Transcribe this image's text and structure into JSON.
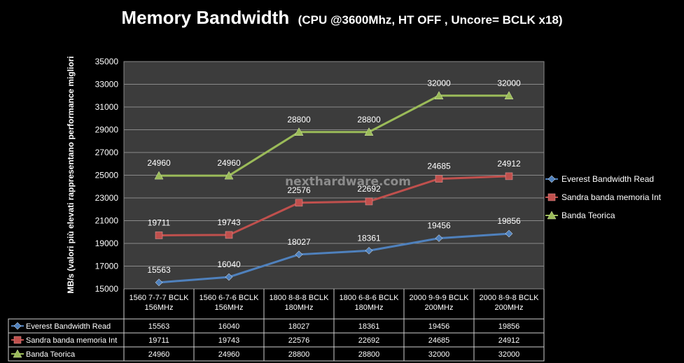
{
  "chart_data": {
    "type": "line",
    "title": "Memory Bandwidth",
    "subtitle": "(CPU @3600Mhz, HT OFF , Uncore= BCLK x18)",
    "ylabel": "MB/s (valori più elevati rappresentano performance migliori",
    "watermark": "nexthardware.com",
    "ylim": [
      15000,
      35000
    ],
    "yticks": [
      15000,
      17000,
      19000,
      21000,
      23000,
      25000,
      27000,
      29000,
      31000,
      33000,
      35000
    ],
    "categories": [
      [
        "1560 7-7-7 BCLK",
        "156MHz"
      ],
      [
        "1560 6-7-6 BCLK",
        "156MHz"
      ],
      [
        "1800 8-8-8 BCLK",
        "180MHz"
      ],
      [
        "1800 6-8-6 BCLK",
        "180MHz"
      ],
      [
        "2000 9-9-9 BCLK",
        "200MHz"
      ],
      [
        "2000 8-9-8 BCLK",
        "200MHz"
      ]
    ],
    "series": [
      {
        "name": "Everest Bandwidth Read",
        "color": "#4f81bd",
        "marker": "diamond",
        "values": [
          15563,
          16040,
          18027,
          18361,
          19456,
          19856
        ]
      },
      {
        "name": "Sandra banda memoria Int",
        "color": "#c0504d",
        "marker": "square",
        "values": [
          19711,
          19743,
          22576,
          22692,
          24685,
          24912
        ]
      },
      {
        "name": "Banda Teorica",
        "color": "#9bbb59",
        "marker": "triangle",
        "values": [
          24960,
          24960,
          28800,
          28800,
          32000,
          32000
        ]
      }
    ],
    "grid": true,
    "legend_position": "right",
    "data_table": true
  }
}
